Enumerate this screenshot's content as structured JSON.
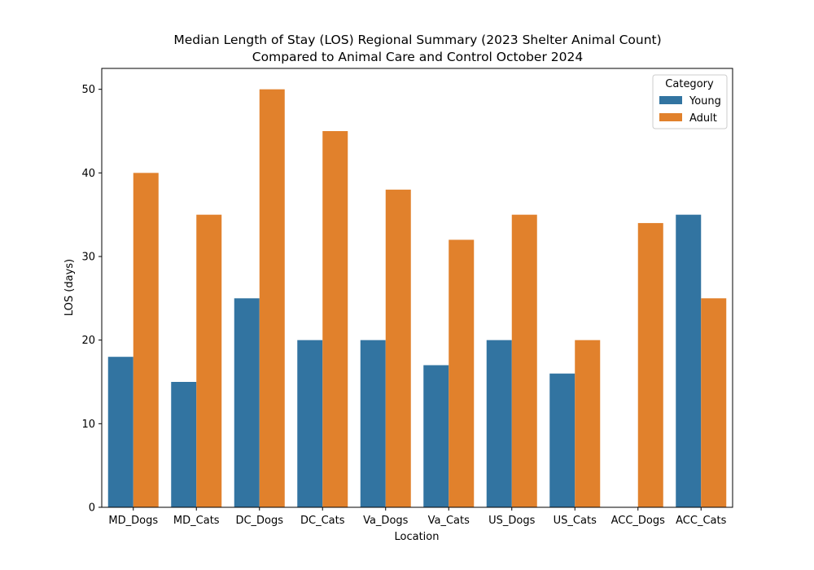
{
  "chart_data": {
    "type": "bar",
    "title": "Median Length of Stay (LOS) Regional Summary (2023 Shelter Animal Count)",
    "subtitle": "Compared to Animal Care and Control October 2024",
    "xlabel": "Location",
    "ylabel": "LOS (days)",
    "ylim": [
      0,
      52.5
    ],
    "yticks": [
      0,
      10,
      20,
      30,
      40,
      50
    ],
    "grid": false,
    "legend_position": "top-right",
    "legend_title": "Category",
    "categories": [
      "MD_Dogs",
      "MD_Cats",
      "DC_Dogs",
      "DC_Cats",
      "Va_Dogs",
      "Va_Cats",
      "US_Dogs",
      "US_Cats",
      "ACC_Dogs",
      "ACC_Cats"
    ],
    "series": [
      {
        "name": "Young",
        "color": "#3274a1",
        "values": [
          18,
          15,
          25,
          20,
          20,
          17,
          20,
          16,
          null,
          35
        ]
      },
      {
        "name": "Adult",
        "color": "#e1812c",
        "values": [
          40,
          35,
          50,
          45,
          38,
          32,
          35,
          20,
          34,
          25
        ]
      }
    ]
  }
}
